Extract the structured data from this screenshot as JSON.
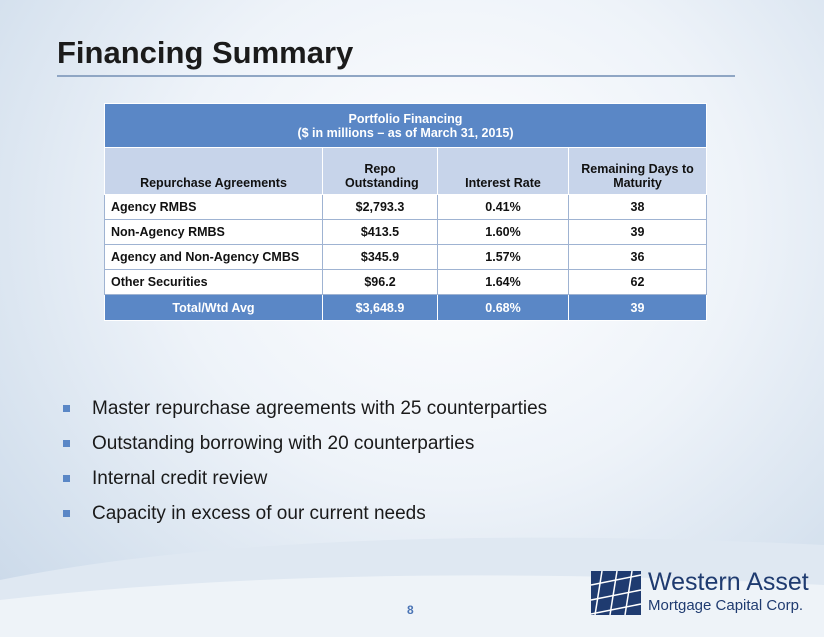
{
  "header": {
    "title": "Financing Summary"
  },
  "table": {
    "caption": [
      "Portfolio Financing",
      "($ in millions – as of  March 31, 2015)"
    ],
    "columns": [
      "Repurchase Agreements",
      "Repo Outstanding",
      "Interest Rate",
      "Remaining Days to Maturity"
    ],
    "rows": [
      [
        "Agency RMBS",
        "$2,793.3",
        "0.41%",
        "38"
      ],
      [
        "Non-Agency RMBS",
        "$413.5",
        "1.60%",
        "39"
      ],
      [
        "Agency and Non-Agency CMBS",
        "$345.9",
        "1.57%",
        "36"
      ],
      [
        "Other Securities",
        "$96.2",
        "1.64%",
        "62"
      ]
    ],
    "total": [
      "Total/Wtd Avg",
      "$3,648.9",
      "0.68%",
      "39"
    ]
  },
  "bullets": [
    "Master repurchase agreements with 25 counterparties",
    "Outstanding borrowing with 20 counterparties",
    "Internal credit review",
    "Capacity in excess of our current needs"
  ],
  "footer": {
    "page": "8",
    "logo": {
      "name": "Western Asset",
      "tagline": "Mortgage Capital Corp."
    }
  }
}
